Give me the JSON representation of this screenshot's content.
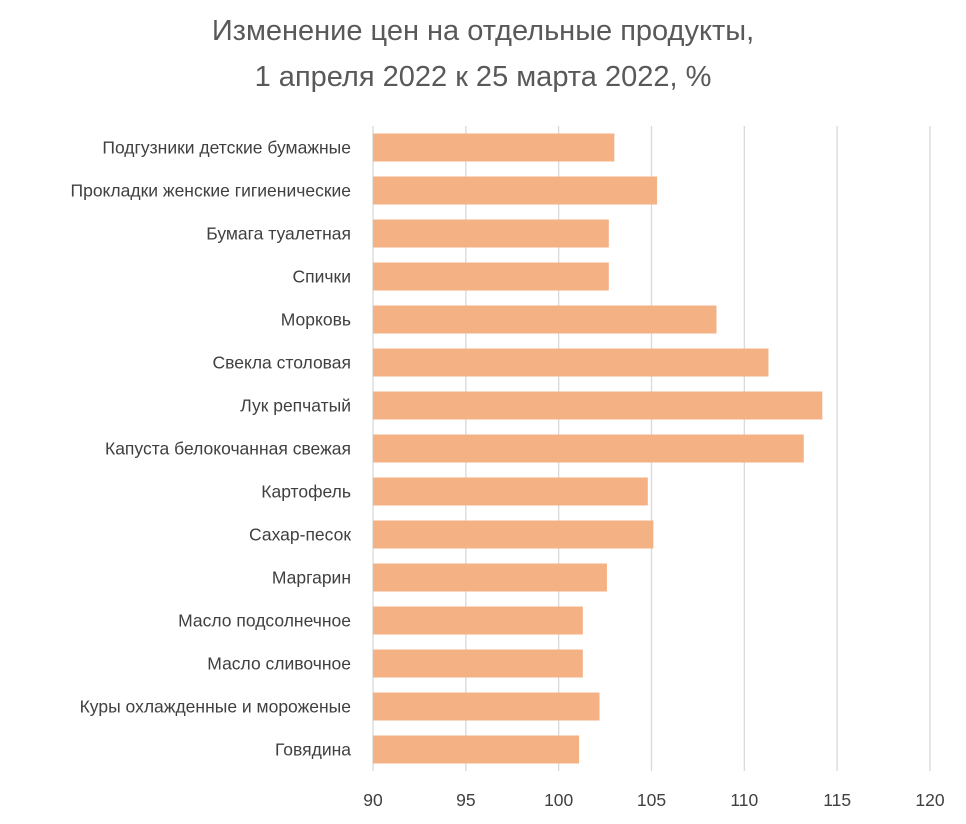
{
  "chart_data": {
    "type": "bar",
    "orientation": "horizontal",
    "title": "Изменение цен на отдельные продукты,",
    "subtitle": "1 апреля 2022 к 25 марта 2022, %",
    "xlabel": "",
    "ylabel": "",
    "xlim": [
      90,
      120
    ],
    "xticks": [
      "90",
      "95",
      "100",
      "105",
      "110",
      "115",
      "120"
    ],
    "grid": "vertical",
    "legend": "none",
    "bar_color": "#F4B183",
    "grid_color": "#D9D9D9",
    "categories": [
      "Подгузники детские бумажные",
      "Прокладки женские гигиенические",
      "Бумага туалетная",
      "Спички",
      "Морковь",
      "Свекла столовая",
      "Лук репчатый",
      "Капуста белокочанная свежая",
      "Картофель",
      "Сахар-песок",
      "Маргарин",
      "Масло подсолнечное",
      "Масло сливочное",
      "Куры охлажденные и мороженые",
      "Говядина"
    ],
    "values": [
      103.0,
      105.3,
      102.7,
      102.7,
      108.5,
      111.3,
      114.2,
      113.2,
      104.8,
      105.1,
      102.6,
      101.3,
      101.3,
      102.2,
      101.1
    ]
  }
}
